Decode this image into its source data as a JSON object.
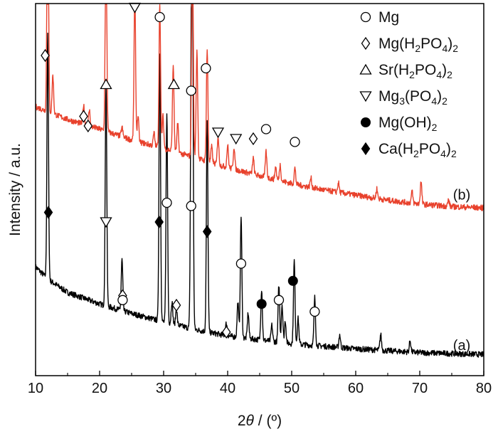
{
  "chart_data": {
    "type": "line",
    "title": "",
    "xlabel": {
      "pre": "2",
      "var": "θ",
      "post": " / (º)"
    },
    "ylabel": "Intensity / a.u.",
    "xlim": [
      10,
      80
    ],
    "xticks": [
      10,
      20,
      30,
      40,
      50,
      60,
      70,
      80
    ],
    "grid": false,
    "legend_position": "top-right",
    "colors": {
      "a": "#000000",
      "b": "#e8412c"
    },
    "series": [
      {
        "label": "(a)",
        "color": "#000000",
        "baseline": [
          [
            10,
            170
          ],
          [
            12,
            150
          ],
          [
            15,
            130
          ],
          [
            20,
            112
          ],
          [
            25,
            97
          ],
          [
            30,
            84
          ],
          [
            35,
            72
          ],
          [
            40,
            62
          ],
          [
            50,
            50
          ],
          [
            60,
            42
          ],
          [
            70,
            36
          ],
          [
            80,
            33
          ]
        ],
        "peaks": [
          [
            11.9,
            380
          ],
          [
            21.0,
            350
          ],
          [
            23.5,
            80
          ],
          [
            29.4,
            420
          ],
          [
            30.5,
            330
          ],
          [
            31.3,
            35
          ],
          [
            32.0,
            25
          ],
          [
            34.3,
            360
          ],
          [
            34.5,
            560
          ],
          [
            36.8,
            330
          ],
          [
            39.8,
            20
          ],
          [
            41.6,
            55
          ],
          [
            42.1,
            190
          ],
          [
            43.2,
            40
          ],
          [
            45.3,
            80
          ],
          [
            46.9,
            25
          ],
          [
            48.0,
            90
          ],
          [
            48.5,
            60
          ],
          [
            49.0,
            35
          ],
          [
            50.4,
            130
          ],
          [
            51.0,
            40
          ],
          [
            53.6,
            75
          ],
          [
            57.5,
            20
          ],
          [
            63.9,
            25
          ],
          [
            68.5,
            18
          ]
        ]
      },
      {
        "label": "(b)",
        "color": "#e8412c",
        "baseline": [
          [
            10,
            420
          ],
          [
            15,
            400
          ],
          [
            20,
            385
          ],
          [
            25,
            368
          ],
          [
            30,
            355
          ],
          [
            35,
            340
          ],
          [
            40,
            325
          ],
          [
            45,
            312
          ],
          [
            50,
            300
          ],
          [
            55,
            290
          ],
          [
            60,
            282
          ],
          [
            65,
            274
          ],
          [
            70,
            268
          ],
          [
            75,
            264
          ],
          [
            80,
            262
          ]
        ],
        "peaks": [
          [
            11.9,
            420
          ],
          [
            12.7,
            60
          ],
          [
            17.5,
            30
          ],
          [
            18.4,
            25
          ],
          [
            21.0,
            330
          ],
          [
            23.5,
            15
          ],
          [
            25.5,
            235
          ],
          [
            26.0,
            40
          ],
          [
            28.5,
            20
          ],
          [
            29.4,
            225
          ],
          [
            29.9,
            50
          ],
          [
            31.5,
            135
          ],
          [
            32.2,
            45
          ],
          [
            34.5,
            400
          ],
          [
            35.2,
            170
          ],
          [
            36.8,
            175
          ],
          [
            37.5,
            25
          ],
          [
            38.5,
            45
          ],
          [
            40.0,
            35
          ],
          [
            41.0,
            35
          ],
          [
            44.0,
            25
          ],
          [
            46.0,
            40
          ],
          [
            47.5,
            20
          ],
          [
            48.2,
            25
          ],
          [
            50.5,
            25
          ],
          [
            53.0,
            15
          ],
          [
            57.3,
            15
          ],
          [
            63.3,
            15
          ],
          [
            68.8,
            18
          ],
          [
            70.2,
            35
          ],
          [
            74.5,
            10
          ]
        ]
      }
    ],
    "curve_labels": [
      {
        "text": "(a)",
        "x": 75.2,
        "y": 40
      },
      {
        "text": "(b)",
        "x": 75.2,
        "y": 275
      }
    ],
    "markers": [
      {
        "shape": "diamond-open",
        "x": 11.5,
        "y": 500
      },
      {
        "shape": "triangle-up-open",
        "x": 21.0,
        "y": 455
      },
      {
        "shape": "triangle-down-open",
        "x": 25.5,
        "y": 575
      },
      {
        "shape": "circle-open",
        "x": 29.4,
        "y": 560
      },
      {
        "shape": "triangle-up-open",
        "x": 31.6,
        "y": 455
      },
      {
        "shape": "circle-open",
        "x": 34.3,
        "y": 445
      },
      {
        "shape": "circle-open",
        "x": 36.6,
        "y": 480
      },
      {
        "shape": "diamond-open",
        "x": 17.5,
        "y": 405
      },
      {
        "shape": "diamond-open",
        "x": 18.2,
        "y": 390
      },
      {
        "shape": "triangle-down-open",
        "x": 38.5,
        "y": 380
      },
      {
        "shape": "triangle-down-open",
        "x": 41.3,
        "y": 370
      },
      {
        "shape": "diamond-open",
        "x": 44.0,
        "y": 370
      },
      {
        "shape": "circle-open",
        "x": 46.0,
        "y": 385
      },
      {
        "shape": "circle-open",
        "x": 50.5,
        "y": 365
      },
      {
        "shape": "diamond-filled",
        "x": 12.0,
        "y": 255
      },
      {
        "shape": "triangle-down-open",
        "x": 21.0,
        "y": 240
      },
      {
        "shape": "diamond-filled",
        "x": 29.3,
        "y": 240
      },
      {
        "shape": "circle-open",
        "x": 30.5,
        "y": 270
      },
      {
        "shape": "circle-open",
        "x": 34.3,
        "y": 265
      },
      {
        "shape": "diamond-filled",
        "x": 36.8,
        "y": 225
      },
      {
        "shape": "diamond-open",
        "x": 23.6,
        "y": 125
      },
      {
        "shape": "circle-open",
        "x": 23.6,
        "y": 118
      },
      {
        "shape": "diamond-open",
        "x": 32.0,
        "y": 110
      },
      {
        "shape": "diamond-open",
        "x": 39.8,
        "y": 68
      },
      {
        "shape": "circle-open",
        "x": 42.1,
        "y": 175
      },
      {
        "shape": "circle-filled",
        "x": 45.3,
        "y": 112
      },
      {
        "shape": "circle-open",
        "x": 48.0,
        "y": 118
      },
      {
        "shape": "circle-filled",
        "x": 50.2,
        "y": 148
      },
      {
        "shape": "circle-open",
        "x": 53.6,
        "y": 100
      }
    ],
    "legend": [
      {
        "shape": "circle-open",
        "label": "Mg"
      },
      {
        "shape": "diamond-open",
        "parts": [
          [
            "Mg(H",
            ""
          ],
          [
            "2",
            "sub"
          ],
          [
            "PO",
            ""
          ],
          [
            "4",
            "sub"
          ],
          [
            ")",
            ""
          ],
          [
            "2",
            "sub"
          ]
        ]
      },
      {
        "shape": "triangle-up-open",
        "parts": [
          [
            "Sr(H",
            ""
          ],
          [
            "2",
            "sub"
          ],
          [
            "PO",
            ""
          ],
          [
            "4",
            "sub"
          ],
          [
            ")",
            ""
          ],
          [
            "2",
            "sub"
          ]
        ]
      },
      {
        "shape": "triangle-down-open",
        "parts": [
          [
            "Mg",
            ""
          ],
          [
            "3",
            "sub"
          ],
          [
            "(PO",
            ""
          ],
          [
            "4",
            "sub"
          ],
          [
            ")",
            ""
          ],
          [
            "2",
            "sub"
          ]
        ]
      },
      {
        "shape": "circle-filled",
        "parts": [
          [
            "Mg(OH)",
            ""
          ],
          [
            "2",
            "sub"
          ]
        ]
      },
      {
        "shape": "diamond-filled",
        "parts": [
          [
            "Ca(H",
            ""
          ],
          [
            "2",
            "sub"
          ],
          [
            "PO",
            ""
          ],
          [
            "4",
            "sub"
          ],
          [
            ")",
            ""
          ],
          [
            "2",
            "sub"
          ]
        ]
      }
    ]
  }
}
